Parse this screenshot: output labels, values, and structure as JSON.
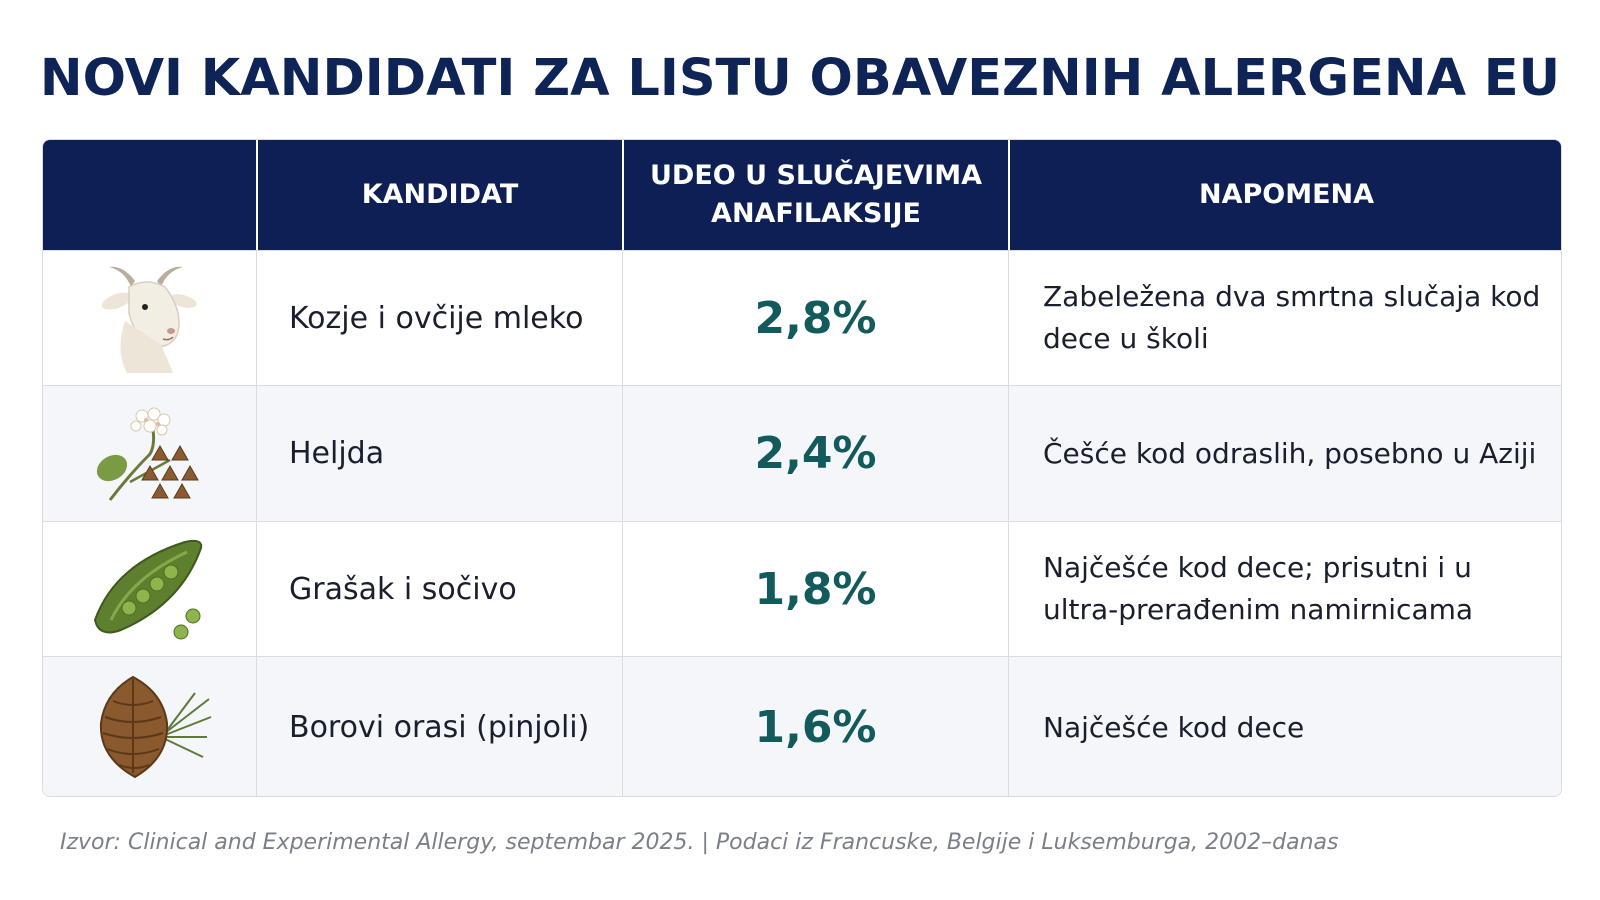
{
  "title": "NOVI KANDIDATI ZA LISTU OBAVEZNIH ALERGENA EU",
  "table": {
    "headers": {
      "icon": "",
      "candidate": "KANDIDAT",
      "share_line1": "UDEO U SLUČAJEVIMA",
      "share_line2": "ANAFILAKSIJE",
      "note": "NAPOMENA"
    },
    "rows": [
      {
        "icon": "goat-icon",
        "candidate": "Kozje i ovčije mleko",
        "share": "2,8%",
        "note": "Zabeležena dva smrtna slučaja kod dece u školi"
      },
      {
        "icon": "buckwheat-icon",
        "candidate": "Heljda",
        "share": "2,4%",
        "note": "Češće kod odraslih, posebno u Aziji"
      },
      {
        "icon": "pea-pod-icon",
        "candidate": "Grašak i sočivo",
        "share": "1,8%",
        "note": "Najčešće kod dece; prisutni i u ultra-prerađenim namirnicama"
      },
      {
        "icon": "pine-cone-icon",
        "candidate": "Borovi orasi (pinjoli)",
        "share": "1,6%",
        "note": "Najčešće kod dece"
      }
    ]
  },
  "source": "Izvor: Clinical and Experimental Allergy, septembar 2025. | Podaci iz Francuske, Belgije i Luksemburga, 2002–danas",
  "colors": {
    "title": "#0f2456",
    "header_bg": "#0d1f55",
    "percent": "#125a5c",
    "alt_row": "#f5f6f9"
  }
}
